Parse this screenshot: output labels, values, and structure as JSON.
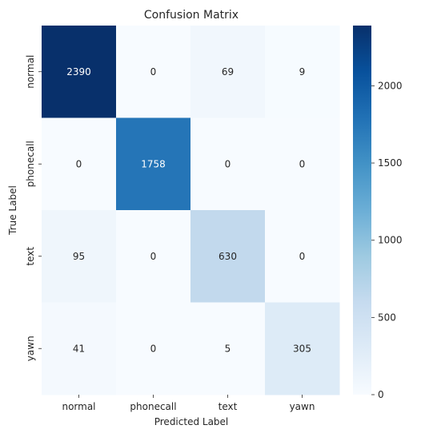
{
  "chart_data": {
    "type": "heatmap",
    "title": "Confusion Matrix",
    "xlabel": "Predicted Label",
    "ylabel": "True Label",
    "x_categories": [
      "normal",
      "phonecall",
      "text",
      "yawn"
    ],
    "y_categories": [
      "normal",
      "phonecall",
      "text",
      "yawn"
    ],
    "values": [
      [
        2390,
        0,
        69,
        9
      ],
      [
        0,
        1758,
        0,
        0
      ],
      [
        95,
        0,
        630,
        0
      ],
      [
        41,
        0,
        5,
        305
      ]
    ],
    "colormap": "Blues",
    "colorbar": {
      "vmin": 0,
      "vmax": 2390,
      "ticks": [
        0,
        500,
        1000,
        1500,
        2000
      ]
    },
    "grid": false
  }
}
